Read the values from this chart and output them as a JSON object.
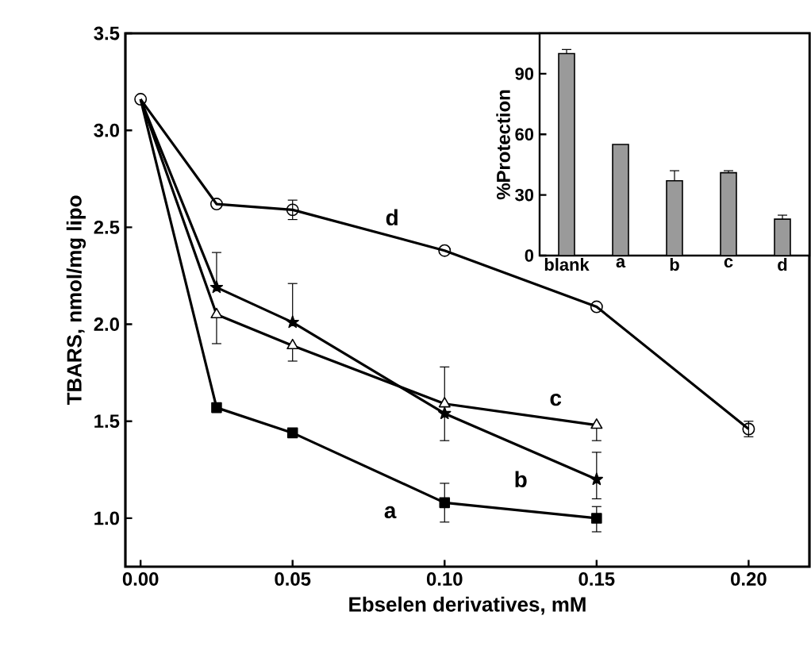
{
  "chart_data": [
    {
      "type": "line",
      "xlabel": "Ebselen derivatives, mM",
      "ylabel": "TBARS, nmol/mg lipo",
      "xlim": [
        -0.005,
        0.22
      ],
      "ylim": [
        0.75,
        3.5
      ],
      "xticks": [
        {
          "value": 0,
          "label": "0.00"
        },
        {
          "value": 0.05,
          "label": "0.05"
        },
        {
          "value": 0.1,
          "label": "0.10"
        },
        {
          "value": 0.15,
          "label": "0.15"
        },
        {
          "value": 0.2,
          "label": "0.20"
        }
      ],
      "yticks": [
        {
          "value": 1,
          "label": "1.0"
        },
        {
          "value": 1.5,
          "label": "1.5"
        },
        {
          "value": 2,
          "label": "2.0"
        },
        {
          "value": 2.5,
          "label": "2.5"
        },
        {
          "value": 3,
          "label": "3.0"
        },
        {
          "value": 3.5,
          "label": "3.5"
        }
      ],
      "series": [
        {
          "color": "#000000",
          "marker": "circle",
          "x": [
            0,
            0.025,
            0.05,
            0.1,
            0.15,
            0.2
          ],
          "values": [
            3.16,
            2.62,
            2.59,
            2.38,
            2.09,
            1.46
          ],
          "errors": [
            null,
            null,
            0.05,
            null,
            null,
            0.04
          ]
        },
        {
          "color": "#000000",
          "marker": "square",
          "x": [
            0,
            0.025,
            0.05,
            0.1,
            0.15
          ],
          "values": [
            3.16,
            1.57,
            1.44,
            1.08,
            1.0
          ],
          "errors": [
            null,
            null,
            null,
            0.1,
            [
              0.93,
              1.06
            ]
          ]
        },
        {
          "color": "#000000",
          "marker": "star",
          "x": [
            0,
            0.025,
            0.05,
            0.1,
            0.15
          ],
          "values": [
            3.16,
            2.19,
            2.01,
            1.54,
            1.2
          ],
          "errors": [
            null,
            [
              2.19,
              2.37
            ],
            [
              2.01,
              2.21
            ],
            [
              1.4,
              1.54
            ],
            [
              1.1,
              1.34
            ]
          ]
        },
        {
          "color": "#000000",
          "marker": "triangle",
          "x": [
            0,
            0.025,
            0.05,
            0.1,
            0.15
          ],
          "values": [
            3.16,
            2.05,
            1.89,
            1.59,
            1.48
          ],
          "errors": [
            null,
            [
              1.9,
              2.05
            ],
            [
              1.81,
              1.89
            ],
            [
              1.59,
              1.78
            ],
            [
              1.4,
              1.48
            ]
          ]
        }
      ],
      "annotations": [
        "a",
        "b",
        "c",
        "d"
      ]
    },
    {
      "type": "bar",
      "ylabel": "%Protection",
      "categories": [
        "blank",
        "a",
        "b",
        "c",
        "d"
      ],
      "ylim": [
        0,
        110
      ],
      "yticks": [
        0,
        30,
        60,
        90
      ],
      "color": "#9a9a9a",
      "values": [
        100,
        55,
        37,
        41,
        18
      ],
      "errors": [
        2,
        null,
        5,
        1,
        2
      ]
    }
  ]
}
